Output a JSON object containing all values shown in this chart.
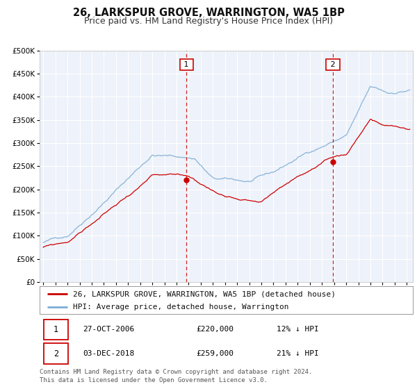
{
  "title": "26, LARKSPUR GROVE, WARRINGTON, WA5 1BP",
  "subtitle": "Price paid vs. HM Land Registry's House Price Index (HPI)",
  "background_color": "#ffffff",
  "plot_bg_color": "#eef2fa",
  "grid_color": "#ffffff",
  "ylim": [
    0,
    500000
  ],
  "yticks": [
    0,
    50000,
    100000,
    150000,
    200000,
    250000,
    300000,
    350000,
    400000,
    450000,
    500000
  ],
  "xlim_start": 1994.7,
  "xlim_end": 2025.5,
  "xtick_years": [
    1995,
    1996,
    1997,
    1998,
    1999,
    2000,
    2001,
    2002,
    2003,
    2004,
    2005,
    2006,
    2007,
    2008,
    2009,
    2010,
    2011,
    2012,
    2013,
    2014,
    2015,
    2016,
    2017,
    2018,
    2019,
    2020,
    2021,
    2022,
    2023,
    2024,
    2025
  ],
  "marker1_x": 2006.82,
  "marker1_y": 220000,
  "marker2_x": 2018.92,
  "marker2_y": 259000,
  "vline1_x": 2006.82,
  "vline2_x": 2018.92,
  "legend_entry1": "26, LARKSPUR GROVE, WARRINGTON, WA5 1BP (detached house)",
  "legend_entry2": "HPI: Average price, detached house, Warrington",
  "annotation1_date": "27-OCT-2006",
  "annotation1_price": "£220,000",
  "annotation1_hpi": "12% ↓ HPI",
  "annotation2_date": "03-DEC-2018",
  "annotation2_price": "£259,000",
  "annotation2_hpi": "21% ↓ HPI",
  "footer": "Contains HM Land Registry data © Crown copyright and database right 2024.\nThis data is licensed under the Open Government Licence v3.0.",
  "red_line_color": "#cc0000",
  "blue_line_color": "#7eadd4",
  "marker_color": "#cc0000",
  "vline_color": "#cc0000",
  "title_fontsize": 10.5,
  "subtitle_fontsize": 9,
  "axis_fontsize": 7.5,
  "legend_fontsize": 8,
  "annotation_fontsize": 8,
  "footer_fontsize": 6.5
}
